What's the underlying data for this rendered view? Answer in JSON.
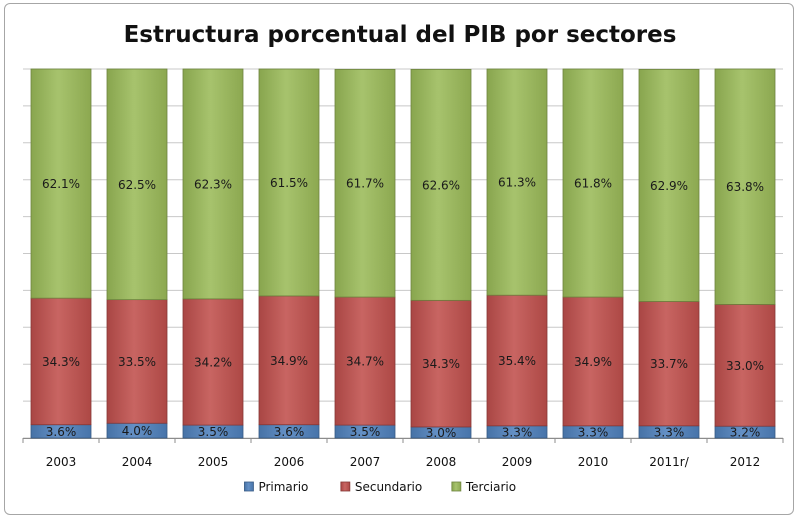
{
  "chart_data": {
    "type": "bar",
    "stacked": true,
    "percent_stacked": true,
    "title": "Estructura porcentual del PIB por sectores",
    "xlabel": "",
    "ylabel": "",
    "ylim": [
      0,
      100
    ],
    "grid": true,
    "legend_position": "bottom",
    "categories": [
      "2003",
      "2004",
      "2005",
      "2006",
      "2007",
      "2008",
      "2009",
      "2010",
      "2011r/",
      "2012"
    ],
    "series": [
      {
        "name": "Primario",
        "color": "#4f81bd",
        "values": [
          3.6,
          4.0,
          3.5,
          3.6,
          3.5,
          3.0,
          3.3,
          3.3,
          3.3,
          3.2
        ],
        "labels": [
          "3.6%",
          "4.0%",
          "3.5%",
          "3.6%",
          "3.5%",
          "3.0%",
          "3.3%",
          "3.3%",
          "3.3%",
          "3.2%"
        ]
      },
      {
        "name": "Secundario",
        "color": "#c0504d",
        "values": [
          34.3,
          33.5,
          34.2,
          34.9,
          34.7,
          34.3,
          35.4,
          34.9,
          33.7,
          33.0
        ],
        "labels": [
          "34.3%",
          "33.5%",
          "34.2%",
          "34.9%",
          "34.7%",
          "34.3%",
          "35.4%",
          "34.9%",
          "33.7%",
          "33.0%"
        ]
      },
      {
        "name": "Terciario",
        "color": "#9bbb59",
        "values": [
          62.1,
          62.5,
          62.3,
          61.5,
          61.7,
          62.6,
          61.3,
          61.8,
          62.9,
          63.8
        ],
        "labels": [
          "62.1%",
          "62.5%",
          "62.3%",
          "61.5%",
          "61.7%",
          "62.6%",
          "61.3%",
          "61.8%",
          "62.9%",
          "63.8%"
        ]
      }
    ]
  }
}
